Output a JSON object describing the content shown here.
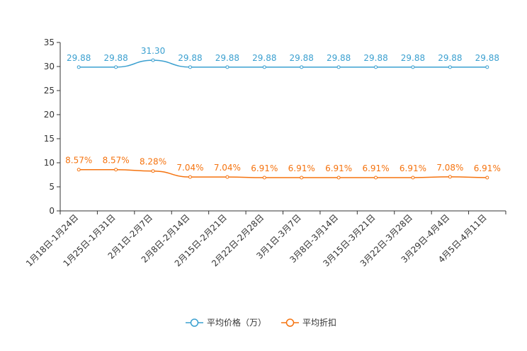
{
  "chart_data": {
    "type": "line",
    "title": "",
    "xlabel": "",
    "ylabel": "",
    "ylim": [
      0,
      35
    ],
    "yticks": [
      0,
      5,
      10,
      15,
      20,
      25,
      30,
      35
    ],
    "grid": false,
    "legend_position": "bottom-center",
    "categories": [
      "1月18日-1月24日",
      "1月25日-1月31日",
      "2月1日-2月7日",
      "2月8日-2月14日",
      "2月15日-2月21日",
      "2月22日-2月28日",
      "3月1日-3月7日",
      "3月8日-3月14日",
      "3月15日-3月21日",
      "3月22日-3月28日",
      "3月29日-4月4日",
      "4月5日-4月11日"
    ],
    "series": [
      {
        "name": "平均价格（万）",
        "color": "#3ba0d0",
        "values": [
          29.88,
          29.88,
          31.3,
          29.88,
          29.88,
          29.88,
          29.88,
          29.88,
          29.88,
          29.88,
          29.88,
          29.88
        ],
        "labels": [
          "29.88",
          "29.88",
          "31.30",
          "29.88",
          "29.88",
          "29.88",
          "29.88",
          "29.88",
          "29.88",
          "29.88",
          "29.88",
          "29.88"
        ]
      },
      {
        "name": "平均折扣",
        "color": "#f5730f",
        "values": [
          8.57,
          8.57,
          8.28,
          7.04,
          7.04,
          6.91,
          6.91,
          6.91,
          6.91,
          6.91,
          7.08,
          6.91
        ],
        "labels": [
          "8.57%",
          "8.57%",
          "8.28%",
          "7.04%",
          "7.04%",
          "6.91%",
          "6.91%",
          "6.91%",
          "6.91%",
          "6.91%",
          "7.08%",
          "6.91%"
        ]
      }
    ]
  }
}
